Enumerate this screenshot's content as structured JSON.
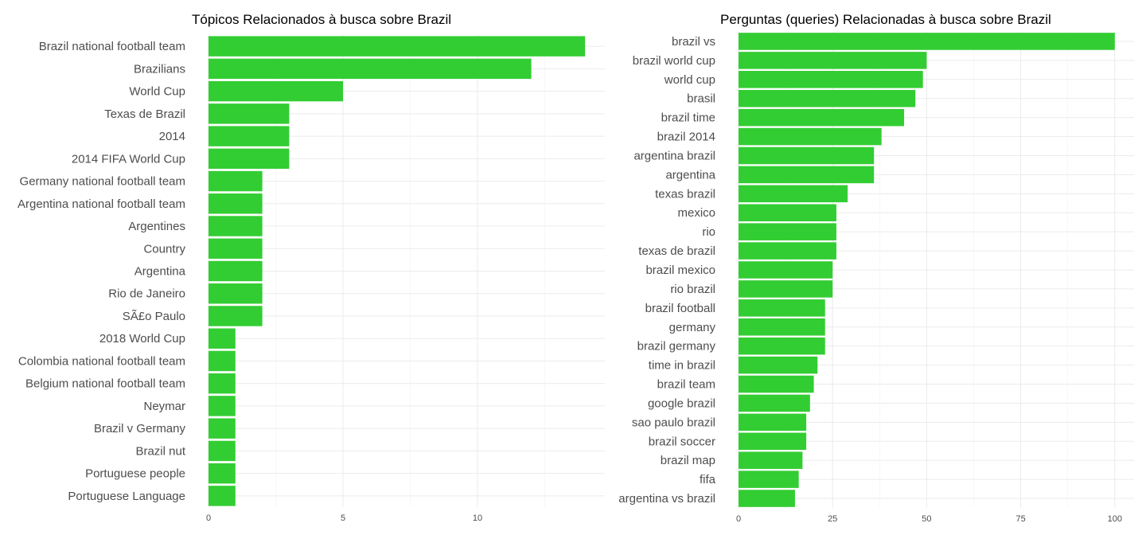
{
  "chart_data": [
    {
      "type": "bar",
      "orientation": "horizontal",
      "title": "Tópicos Relacionados à busca sobre Brazil",
      "xlabel": "",
      "ylabel": "",
      "color": "#32CD32",
      "xlim": [
        0,
        14
      ],
      "xticks": [
        "0",
        "5",
        "10"
      ],
      "grid": true,
      "categories": [
        "Brazil national football team",
        "Brazilians",
        "World Cup",
        "Texas de Brazil",
        "2014",
        "2014 FIFA World Cup",
        "Germany national football team",
        "Argentina national football team",
        "Argentines",
        "Country",
        "Argentina",
        "Rio de Janeiro",
        "SÃ£o Paulo",
        "2018 World Cup",
        "Colombia national football team",
        "Belgium national football team",
        "Neymar",
        "Brazil v Germany",
        "Brazil nut",
        "Portuguese people",
        "Portuguese Language"
      ],
      "values": [
        14,
        12,
        5,
        3,
        3,
        3,
        2,
        2,
        2,
        2,
        2,
        2,
        2,
        1,
        1,
        1,
        1,
        1,
        1,
        1,
        1
      ]
    },
    {
      "type": "bar",
      "orientation": "horizontal",
      "title": "Perguntas (queries) Relacionadas à busca sobre Brazil",
      "xlabel": "",
      "ylabel": "",
      "color": "#32CD32",
      "xlim": [
        0,
        100
      ],
      "xticks": [
        "0",
        "25",
        "50",
        "75",
        "100"
      ],
      "grid": true,
      "categories": [
        "brazil vs",
        "brazil world cup",
        "world cup",
        "brasil",
        "brazil time",
        "brazil 2014",
        "argentina brazil",
        "argentina",
        "texas brazil",
        "mexico",
        "rio",
        "texas de brazil",
        "brazil mexico",
        "rio brazil",
        "brazil football",
        "germany",
        "brazil germany",
        "time in brazil",
        "brazil team",
        "google brazil",
        "sao paulo brazil",
        "brazil soccer",
        "brazil map",
        "fifa",
        "argentina vs brazil"
      ],
      "values": [
        100,
        50,
        49,
        47,
        44,
        38,
        36,
        36,
        29,
        26,
        26,
        26,
        25,
        25,
        23,
        23,
        23,
        21,
        20,
        19,
        18,
        18,
        17,
        16,
        15
      ]
    }
  ]
}
